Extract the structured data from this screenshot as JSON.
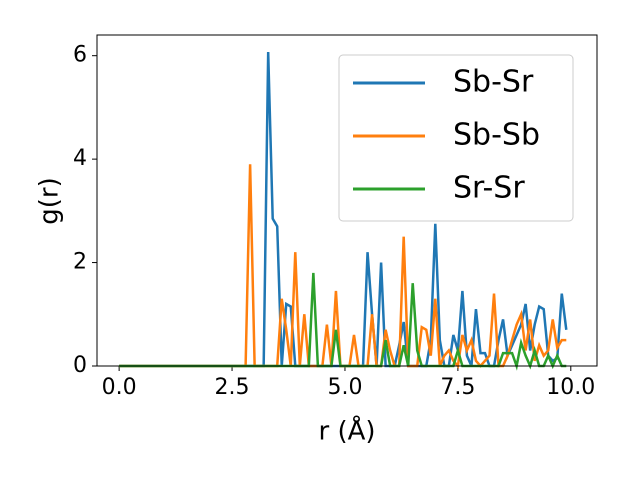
{
  "chart_data": {
    "type": "line",
    "xlabel": "r (Å)",
    "ylabel": "g(r)",
    "x": [
      0,
      0.1,
      0.2,
      0.3,
      0.4,
      0.5,
      0.6,
      0.7,
      0.8,
      0.9,
      1,
      1.1,
      1.2,
      1.3,
      1.4,
      1.5,
      1.6,
      1.7,
      1.8,
      1.9,
      2,
      2.1,
      2.2,
      2.3,
      2.4,
      2.5,
      2.6,
      2.7,
      2.8,
      2.9,
      3,
      3.1,
      3.2,
      3.3,
      3.4,
      3.5,
      3.6,
      3.7,
      3.8,
      3.9,
      4,
      4.1,
      4.2,
      4.3,
      4.4,
      4.5,
      4.6,
      4.7,
      4.8,
      4.9,
      5,
      5.1,
      5.2,
      5.3,
      5.4,
      5.5,
      5.6,
      5.7,
      5.8,
      5.9,
      6,
      6.1,
      6.2,
      6.3,
      6.4,
      6.5,
      6.6,
      6.7,
      6.8,
      6.9,
      7,
      7.1,
      7.2,
      7.3,
      7.4,
      7.5,
      7.6,
      7.7,
      7.8,
      7.9,
      8,
      8.1,
      8.2,
      8.3,
      8.4,
      8.5,
      8.6,
      8.7,
      8.8,
      8.9,
      9,
      9.1,
      9.2,
      9.3,
      9.4,
      9.5,
      9.6,
      9.7,
      9.8,
      9.9
    ],
    "series": [
      {
        "name": "Sb-Sr",
        "color": "#1f77b4",
        "values": [
          0,
          0,
          0,
          0,
          0,
          0,
          0,
          0,
          0,
          0,
          0,
          0,
          0,
          0,
          0,
          0,
          0,
          0,
          0,
          0,
          0,
          0,
          0,
          0,
          0,
          0,
          0,
          0,
          0,
          0,
          0,
          0,
          0,
          6.07,
          2.85,
          2.7,
          0,
          1.2,
          1.15,
          0,
          0,
          0,
          0,
          0,
          0,
          0,
          0,
          0,
          0,
          0,
          0,
          0,
          0,
          0,
          0,
          2.2,
          1.0,
          0,
          2.0,
          0,
          0,
          0,
          0.4,
          0.85,
          0,
          0,
          0,
          0,
          0,
          0.5,
          2.75,
          0.5,
          0,
          0,
          0.6,
          0.3,
          1.45,
          0.2,
          0,
          1.1,
          0.25,
          0.25,
          0,
          0,
          0.5,
          0.9,
          0.2,
          0.4,
          0.6,
          0.8,
          1.2,
          0.3,
          0.8,
          1.15,
          1.1,
          0.2,
          0.1,
          0.15,
          1.4,
          0.7
        ]
      },
      {
        "name": "Sb-Sb",
        "color": "#ff7f0e",
        "values": [
          0,
          0,
          0,
          0,
          0,
          0,
          0,
          0,
          0,
          0,
          0,
          0,
          0,
          0,
          0,
          0,
          0,
          0,
          0,
          0,
          0,
          0,
          0,
          0,
          0,
          0,
          0,
          0,
          0,
          3.9,
          0,
          0,
          0,
          0,
          0,
          0,
          1.3,
          0.7,
          0,
          2.2,
          0,
          1.0,
          0,
          0,
          0,
          0,
          0.8,
          0,
          1.45,
          0,
          0,
          0,
          0.6,
          0,
          0,
          0,
          1.0,
          0,
          0,
          0.7,
          0.3,
          0,
          0,
          2.5,
          0,
          0,
          0,
          0.75,
          0.7,
          0.2,
          1.3,
          0,
          0.2,
          0.3,
          0.1,
          0,
          0.6,
          0.3,
          0.5,
          0.1,
          0,
          0.1,
          0.2,
          1.4,
          0,
          0,
          0.2,
          0.5,
          0.8,
          1.0,
          0.3,
          0.9,
          0.1,
          0.4,
          0.2,
          0.3,
          0.9,
          0.35,
          0.5,
          0.5
        ]
      },
      {
        "name": "Sr-Sr",
        "color": "#2ca02c",
        "values": [
          0,
          0,
          0,
          0,
          0,
          0,
          0,
          0,
          0,
          0,
          0,
          0,
          0,
          0,
          0,
          0,
          0,
          0,
          0,
          0,
          0,
          0,
          0,
          0,
          0,
          0,
          0,
          0,
          0,
          0,
          0,
          0,
          0,
          0,
          0,
          0,
          0,
          0,
          0,
          0,
          0,
          0,
          0,
          1.8,
          0,
          0,
          0,
          0,
          0.7,
          0,
          0,
          0,
          0,
          0,
          0,
          0,
          0,
          0,
          0,
          0.5,
          0,
          0,
          0,
          0.4,
          0,
          1.6,
          0.3,
          0,
          0,
          0,
          0,
          0,
          0,
          0,
          0,
          0.3,
          0,
          0,
          0,
          0,
          0,
          0,
          0,
          0,
          0,
          0.25,
          0.25,
          0.25,
          0,
          0.45,
          0.2,
          0,
          0.3,
          0,
          0,
          0.2,
          0,
          0.2,
          0,
          0
        ]
      }
    ],
    "xlim": [
      -0.49,
      10.58
    ],
    "ylim": [
      0,
      6.4
    ],
    "xticks": [
      {
        "value": 0,
        "label": "0.0"
      },
      2.5,
      {
        "value": 5,
        "label": "5.0"
      },
      7.5,
      {
        "value": 10,
        "label": "10.0"
      }
    ],
    "yticks": [
      0,
      2,
      4,
      6
    ],
    "legend": "upper right"
  }
}
